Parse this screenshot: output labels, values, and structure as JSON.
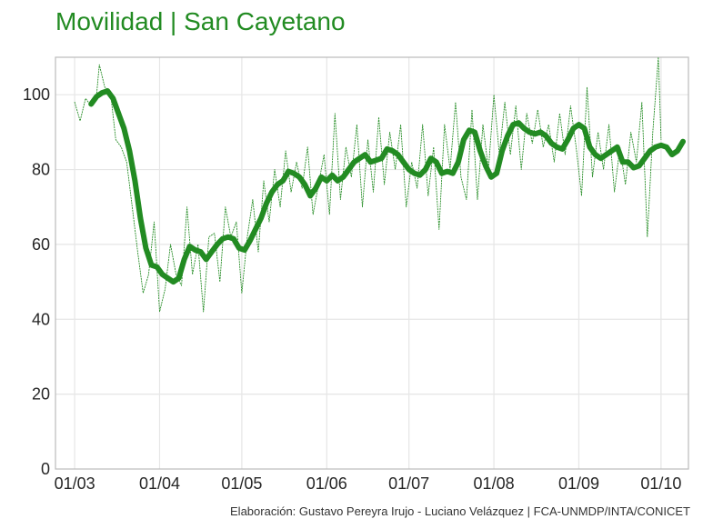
{
  "chart_data": {
    "type": "line",
    "title": "Movilidad | San Cayetano",
    "xlabel": "",
    "ylabel": "",
    "x_ticks": [
      "01/03",
      "01/04",
      "01/05",
      "01/06",
      "01/07",
      "01/08",
      "01/09",
      "01/10"
    ],
    "x_tick_dates": [
      "2020-03-01",
      "2020-04-01",
      "2020-05-01",
      "2020-06-01",
      "2020-07-01",
      "2020-08-01",
      "2020-09-01",
      "2020-10-01"
    ],
    "y_ticks": [
      0,
      20,
      40,
      60,
      80,
      100
    ],
    "ylim": [
      0,
      110
    ],
    "xlim": [
      "2020-02-23",
      "2020-10-11"
    ],
    "grid": true,
    "legend": "none",
    "series": [
      {
        "style": "dotted-thin",
        "color": "#228b22",
        "points": [
          [
            "2020-03-01",
            98
          ],
          [
            "2020-03-03",
            93
          ],
          [
            "2020-03-05",
            99
          ],
          [
            "2020-03-07",
            97
          ],
          [
            "2020-03-09",
            100
          ],
          [
            "2020-03-10",
            108
          ],
          [
            "2020-03-12",
            102
          ],
          [
            "2020-03-14",
            101
          ],
          [
            "2020-03-16",
            88
          ],
          [
            "2020-03-18",
            86
          ],
          [
            "2020-03-20",
            82
          ],
          [
            "2020-03-22",
            70
          ],
          [
            "2020-03-24",
            58
          ],
          [
            "2020-03-26",
            47
          ],
          [
            "2020-03-28",
            52
          ],
          [
            "2020-03-30",
            66
          ],
          [
            "2020-04-01",
            42
          ],
          [
            "2020-04-03",
            48
          ],
          [
            "2020-04-05",
            60
          ],
          [
            "2020-04-07",
            52
          ],
          [
            "2020-04-09",
            49
          ],
          [
            "2020-04-11",
            70
          ],
          [
            "2020-04-13",
            52
          ],
          [
            "2020-04-15",
            60
          ],
          [
            "2020-04-17",
            42
          ],
          [
            "2020-04-19",
            62
          ],
          [
            "2020-04-21",
            63
          ],
          [
            "2020-04-23",
            50
          ],
          [
            "2020-04-25",
            70
          ],
          [
            "2020-04-27",
            62
          ],
          [
            "2020-04-29",
            66
          ],
          [
            "2020-05-01",
            47
          ],
          [
            "2020-05-03",
            62
          ],
          [
            "2020-05-05",
            72
          ],
          [
            "2020-05-07",
            58
          ],
          [
            "2020-05-09",
            77
          ],
          [
            "2020-05-11",
            66
          ],
          [
            "2020-05-13",
            80
          ],
          [
            "2020-05-15",
            70
          ],
          [
            "2020-05-17",
            85
          ],
          [
            "2020-05-19",
            74
          ],
          [
            "2020-05-21",
            82
          ],
          [
            "2020-05-23",
            75
          ],
          [
            "2020-05-25",
            86
          ],
          [
            "2020-05-27",
            68
          ],
          [
            "2020-05-29",
            76
          ],
          [
            "2020-05-31",
            84
          ],
          [
            "2020-06-02",
            68
          ],
          [
            "2020-06-04",
            95
          ],
          [
            "2020-06-06",
            72
          ],
          [
            "2020-06-08",
            86
          ],
          [
            "2020-06-10",
            78
          ],
          [
            "2020-06-12",
            92
          ],
          [
            "2020-06-14",
            70
          ],
          [
            "2020-06-16",
            88
          ],
          [
            "2020-06-18",
            74
          ],
          [
            "2020-06-20",
            94
          ],
          [
            "2020-06-22",
            76
          ],
          [
            "2020-06-24",
            90
          ],
          [
            "2020-06-26",
            80
          ],
          [
            "2020-06-28",
            92
          ],
          [
            "2020-06-30",
            70
          ],
          [
            "2020-07-02",
            82
          ],
          [
            "2020-07-04",
            75
          ],
          [
            "2020-07-06",
            92
          ],
          [
            "2020-07-08",
            73
          ],
          [
            "2020-07-10",
            86
          ],
          [
            "2020-07-12",
            64
          ],
          [
            "2020-07-14",
            92
          ],
          [
            "2020-07-16",
            80
          ],
          [
            "2020-07-18",
            98
          ],
          [
            "2020-07-20",
            78
          ],
          [
            "2020-07-22",
            72
          ],
          [
            "2020-07-24",
            96
          ],
          [
            "2020-07-26",
            72
          ],
          [
            "2020-07-28",
            92
          ],
          [
            "2020-07-30",
            80
          ],
          [
            "2020-08-01",
            100
          ],
          [
            "2020-08-03",
            84
          ],
          [
            "2020-08-05",
            98
          ],
          [
            "2020-08-07",
            84
          ],
          [
            "2020-08-09",
            97
          ],
          [
            "2020-08-11",
            80
          ],
          [
            "2020-08-13",
            95
          ],
          [
            "2020-08-15",
            87
          ],
          [
            "2020-08-17",
            96
          ],
          [
            "2020-08-19",
            86
          ],
          [
            "2020-08-21",
            92
          ],
          [
            "2020-08-23",
            82
          ],
          [
            "2020-08-25",
            95
          ],
          [
            "2020-08-27",
            84
          ],
          [
            "2020-08-29",
            97
          ],
          [
            "2020-08-31",
            86
          ],
          [
            "2020-09-02",
            73
          ],
          [
            "2020-09-04",
            102
          ],
          [
            "2020-09-06",
            78
          ],
          [
            "2020-09-08",
            90
          ],
          [
            "2020-09-10",
            80
          ],
          [
            "2020-09-12",
            92
          ],
          [
            "2020-09-14",
            74
          ],
          [
            "2020-09-16",
            86
          ],
          [
            "2020-09-18",
            76
          ],
          [
            "2020-09-20",
            90
          ],
          [
            "2020-09-22",
            82
          ],
          [
            "2020-09-24",
            98
          ],
          [
            "2020-09-26",
            62
          ],
          [
            "2020-09-28",
            90
          ],
          [
            "2020-09-30",
            110
          ],
          [
            "2020-10-01",
            88
          ]
        ]
      },
      {
        "style": "thick",
        "color": "#228b22",
        "points": [
          [
            "2020-03-07",
            97.5
          ],
          [
            "2020-03-09",
            99.5
          ],
          [
            "2020-03-11",
            100.5
          ],
          [
            "2020-03-13",
            101
          ],
          [
            "2020-03-15",
            99
          ],
          [
            "2020-03-17",
            95
          ],
          [
            "2020-03-19",
            91
          ],
          [
            "2020-03-21",
            85
          ],
          [
            "2020-03-23",
            77
          ],
          [
            "2020-03-25",
            67
          ],
          [
            "2020-03-27",
            59
          ],
          [
            "2020-03-29",
            54.5
          ],
          [
            "2020-03-31",
            54
          ],
          [
            "2020-04-02",
            52
          ],
          [
            "2020-04-04",
            51
          ],
          [
            "2020-04-06",
            50
          ],
          [
            "2020-04-08",
            51
          ],
          [
            "2020-04-10",
            56
          ],
          [
            "2020-04-12",
            59.5
          ],
          [
            "2020-04-14",
            58.5
          ],
          [
            "2020-04-16",
            58
          ],
          [
            "2020-04-18",
            56
          ],
          [
            "2020-04-20",
            58
          ],
          [
            "2020-04-22",
            60
          ],
          [
            "2020-04-24",
            61.5
          ],
          [
            "2020-04-26",
            62
          ],
          [
            "2020-04-28",
            61.5
          ],
          [
            "2020-04-30",
            59
          ],
          [
            "2020-05-02",
            58.5
          ],
          [
            "2020-05-04",
            61
          ],
          [
            "2020-05-06",
            64
          ],
          [
            "2020-05-08",
            67
          ],
          [
            "2020-05-10",
            71
          ],
          [
            "2020-05-12",
            74
          ],
          [
            "2020-05-14",
            76
          ],
          [
            "2020-05-16",
            77
          ],
          [
            "2020-05-18",
            79.5
          ],
          [
            "2020-05-20",
            79
          ],
          [
            "2020-05-22",
            78
          ],
          [
            "2020-05-24",
            76
          ],
          [
            "2020-05-26",
            73
          ],
          [
            "2020-05-28",
            75
          ],
          [
            "2020-05-30",
            78
          ],
          [
            "2020-06-01",
            77
          ],
          [
            "2020-06-03",
            78.5
          ],
          [
            "2020-06-05",
            77
          ],
          [
            "2020-06-07",
            78
          ],
          [
            "2020-06-09",
            80
          ],
          [
            "2020-06-11",
            82
          ],
          [
            "2020-06-13",
            83
          ],
          [
            "2020-06-15",
            84
          ],
          [
            "2020-06-17",
            82
          ],
          [
            "2020-06-19",
            82.5
          ],
          [
            "2020-06-21",
            83
          ],
          [
            "2020-06-23",
            85.5
          ],
          [
            "2020-06-25",
            85
          ],
          [
            "2020-06-27",
            84
          ],
          [
            "2020-06-29",
            82
          ],
          [
            "2020-07-01",
            80
          ],
          [
            "2020-07-03",
            79
          ],
          [
            "2020-07-05",
            78.5
          ],
          [
            "2020-07-07",
            80
          ],
          [
            "2020-07-09",
            83
          ],
          [
            "2020-07-11",
            82
          ],
          [
            "2020-07-13",
            79
          ],
          [
            "2020-07-15",
            79.5
          ],
          [
            "2020-07-17",
            79
          ],
          [
            "2020-07-19",
            82
          ],
          [
            "2020-07-21",
            88
          ],
          [
            "2020-07-23",
            90.5
          ],
          [
            "2020-07-25",
            90
          ],
          [
            "2020-07-27",
            85
          ],
          [
            "2020-07-29",
            81
          ],
          [
            "2020-07-31",
            78
          ],
          [
            "2020-08-02",
            79
          ],
          [
            "2020-08-04",
            85
          ],
          [
            "2020-08-06",
            89
          ],
          [
            "2020-08-08",
            92
          ],
          [
            "2020-08-10",
            92.5
          ],
          [
            "2020-08-12",
            91
          ],
          [
            "2020-08-14",
            90
          ],
          [
            "2020-08-16",
            89.5
          ],
          [
            "2020-08-18",
            90
          ],
          [
            "2020-08-20",
            89
          ],
          [
            "2020-08-22",
            87
          ],
          [
            "2020-08-24",
            86
          ],
          [
            "2020-08-26",
            85.5
          ],
          [
            "2020-08-28",
            88
          ],
          [
            "2020-08-30",
            91
          ],
          [
            "2020-09-01",
            92
          ],
          [
            "2020-09-03",
            91
          ],
          [
            "2020-09-05",
            86
          ],
          [
            "2020-09-07",
            84
          ],
          [
            "2020-09-09",
            83
          ],
          [
            "2020-09-11",
            84
          ],
          [
            "2020-09-13",
            85
          ],
          [
            "2020-09-15",
            86
          ],
          [
            "2020-09-17",
            82
          ],
          [
            "2020-09-19",
            82
          ],
          [
            "2020-09-21",
            80.5
          ],
          [
            "2020-09-23",
            81
          ],
          [
            "2020-09-25",
            83
          ],
          [
            "2020-09-27",
            85
          ],
          [
            "2020-09-29",
            86
          ],
          [
            "2020-10-01",
            86.5
          ],
          [
            "2020-10-03",
            86
          ],
          [
            "2020-10-05",
            84
          ],
          [
            "2020-10-07",
            85
          ],
          [
            "2020-10-09",
            87.5
          ]
        ]
      }
    ]
  },
  "credit": "Elaboración: Gustavo Pereyra Irujo - Luciano Velázquez | FCA-UNMDP/INTA/CONICET",
  "colors": {
    "series": "#228b22",
    "grid": "#e6e6e6",
    "frame": "#bbbbbb",
    "tick_text": "#262626"
  }
}
